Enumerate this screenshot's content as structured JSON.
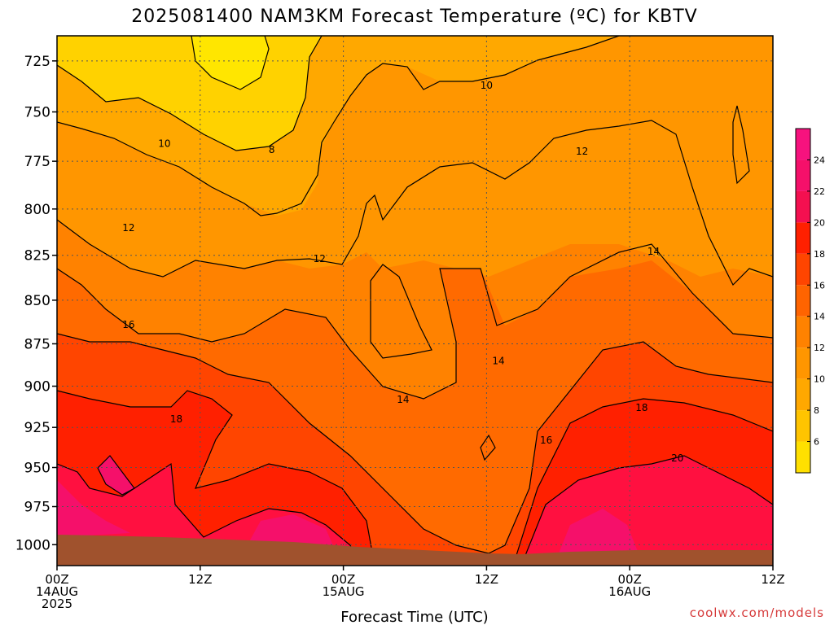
{
  "chart_data": {
    "type": "contour",
    "title": "2025081400 NAM3KM Forecast Temperature (ºC) for KBTV",
    "xlabel": "Forecast Time (UTC)",
    "ylabel": "",
    "credit": "coolwx.com/models",
    "x_ticks": [
      {
        "hour": 0,
        "lines": [
          "00Z",
          "14AUG",
          "2025"
        ]
      },
      {
        "hour": 12,
        "lines": [
          "12Z"
        ]
      },
      {
        "hour": 24,
        "lines": [
          "00Z",
          "15AUG"
        ]
      },
      {
        "hour": 36,
        "lines": [
          "12Z"
        ]
      },
      {
        "hour": 48,
        "lines": [
          "00Z",
          "16AUG"
        ]
      },
      {
        "hour": 60,
        "lines": [
          "12Z"
        ]
      }
    ],
    "xlim": [
      0,
      60
    ],
    "y_ticks": [
      725,
      750,
      775,
      800,
      825,
      850,
      875,
      900,
      925,
      950,
      975,
      1000
    ],
    "ylim": [
      713,
      1014
    ],
    "y_scale": "log-pressure (inverted)",
    "grid": true,
    "colorbar": {
      "ticks": [
        6,
        8,
        10,
        12,
        14,
        16,
        18,
        20,
        22,
        24
      ],
      "range": [
        4,
        26
      ],
      "colors": [
        "#ffe000",
        "#ffc400",
        "#ffa800",
        "#ff9600",
        "#ff8200",
        "#ff6400",
        "#ff4500",
        "#ff2000",
        "#f41050",
        "#f5106a",
        "#f7127e"
      ]
    },
    "contour_labels": [
      {
        "text": "10",
        "hour": 36.0,
        "p": 737
      },
      {
        "text": "10",
        "hour": 9.0,
        "p": 766
      },
      {
        "text": "8",
        "hour": 18.0,
        "p": 769
      },
      {
        "text": "12",
        "hour": 44.0,
        "p": 770
      },
      {
        "text": "12",
        "hour": 6.0,
        "p": 810
      },
      {
        "text": "12",
        "hour": 22.0,
        "p": 827
      },
      {
        "text": "14",
        "hour": 50.0,
        "p": 823
      },
      {
        "text": "16",
        "hour": 6.0,
        "p": 864
      },
      {
        "text": "14",
        "hour": 37.0,
        "p": 885
      },
      {
        "text": "14",
        "hour": 29.0,
        "p": 908
      },
      {
        "text": "18",
        "hour": 10.0,
        "p": 920
      },
      {
        "text": "18",
        "hour": 49.0,
        "p": 913
      },
      {
        "text": "16",
        "hour": 41.0,
        "p": 933
      },
      {
        "text": "20",
        "hour": 52.0,
        "p": 944
      }
    ],
    "surface_color": "#a0522d",
    "frame_color": "#000000"
  }
}
